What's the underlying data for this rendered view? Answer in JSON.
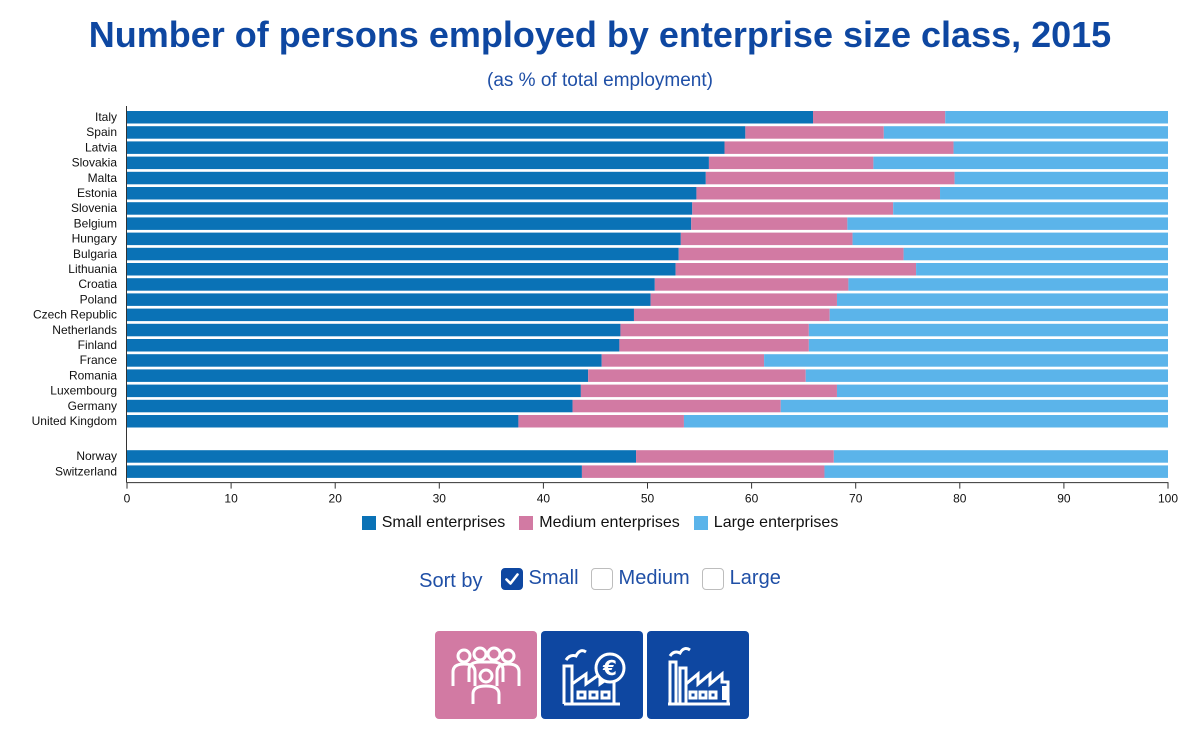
{
  "header": {
    "title": "Number of persons employed by enterprise size class, 2015",
    "subtitle": "(as % of total employment)"
  },
  "colors": {
    "small": "#0a72b6",
    "medium": "#d27aa3",
    "large": "#5bb4ea",
    "accent": "#0e47a1",
    "tile_pink": "#d27aa3",
    "tile_blue": "#0e47a1"
  },
  "chart_data": {
    "type": "bar",
    "orientation": "horizontal",
    "stacked": true,
    "categories": [
      "Italy",
      "Spain",
      "Latvia",
      "Slovakia",
      "Malta",
      "Estonia",
      "Slovenia",
      "Belgium",
      "Hungary",
      "Bulgaria",
      "Lithuania",
      "Croatia",
      "Poland",
      "Czech Republic",
      "Netherlands",
      "Finland",
      "France",
      "Romania",
      "Luxembourg",
      "Germany",
      "United Kingdom",
      "Norway",
      "Switzerland"
    ],
    "gap_before": "Norway",
    "series": [
      {
        "name": "Small enterprises",
        "color": "#0a72b6",
        "values": [
          65.9,
          59.4,
          57.4,
          55.9,
          55.6,
          54.7,
          54.3,
          54.2,
          53.2,
          53.0,
          52.7,
          50.7,
          50.3,
          48.7,
          47.4,
          47.3,
          45.6,
          44.3,
          43.6,
          42.8,
          37.6,
          48.9,
          43.7
        ]
      },
      {
        "name": "Medium enterprises",
        "color": "#d27aa3",
        "values": [
          12.7,
          13.3,
          22.0,
          15.8,
          23.9,
          23.4,
          19.3,
          15.0,
          16.5,
          21.6,
          23.1,
          18.6,
          17.9,
          18.8,
          18.1,
          18.2,
          15.6,
          20.9,
          24.6,
          20.0,
          15.9,
          19.0,
          23.3
        ]
      },
      {
        "name": "Large enterprises",
        "color": "#5bb4ea",
        "values": [
          21.4,
          27.3,
          20.6,
          28.3,
          20.5,
          21.9,
          26.4,
          30.8,
          30.3,
          25.4,
          24.2,
          30.7,
          31.8,
          32.5,
          34.5,
          34.5,
          38.8,
          34.8,
          31.8,
          37.2,
          46.5,
          32.1,
          33.0
        ]
      }
    ],
    "xlim": [
      0,
      100
    ],
    "xticks": [
      0,
      10,
      20,
      30,
      40,
      50,
      60,
      70,
      80,
      90,
      100
    ],
    "legend_position": "bottom-center",
    "grid": false
  },
  "sort": {
    "label": "Sort by",
    "options": [
      {
        "label": "Small",
        "checked": true
      },
      {
        "label": "Medium",
        "checked": false
      },
      {
        "label": "Large",
        "checked": false
      }
    ]
  },
  "tiles": [
    {
      "icon": "people-group-icon",
      "color": "#d27aa3"
    },
    {
      "icon": "factory-euro-icon",
      "color": "#0e47a1"
    },
    {
      "icon": "large-factory-icon",
      "color": "#0e47a1"
    }
  ]
}
